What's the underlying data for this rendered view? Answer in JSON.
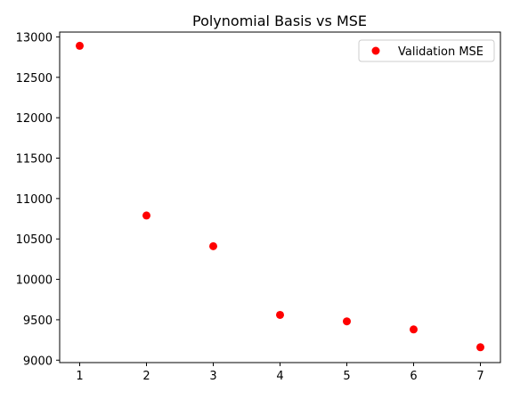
{
  "chart_data": {
    "type": "scatter",
    "title": "Polynomial Basis vs MSE",
    "xlabel": "",
    "ylabel": "",
    "xlim": [
      0.7,
      7.3
    ],
    "ylim": [
      8970,
      13060
    ],
    "x_ticks": [
      1,
      2,
      3,
      4,
      5,
      6,
      7
    ],
    "y_ticks": [
      9000,
      9500,
      10000,
      10500,
      11000,
      11500,
      12000,
      12500,
      13000
    ],
    "grid": false,
    "legend_position": "top-right",
    "series": [
      {
        "name": "Validation MSE",
        "color": "#ff0000",
        "marker": "circle",
        "x": [
          1,
          2,
          3,
          4,
          5,
          6,
          7
        ],
        "y": [
          12890,
          10790,
          10410,
          9560,
          9480,
          9380,
          9160
        ]
      }
    ]
  }
}
